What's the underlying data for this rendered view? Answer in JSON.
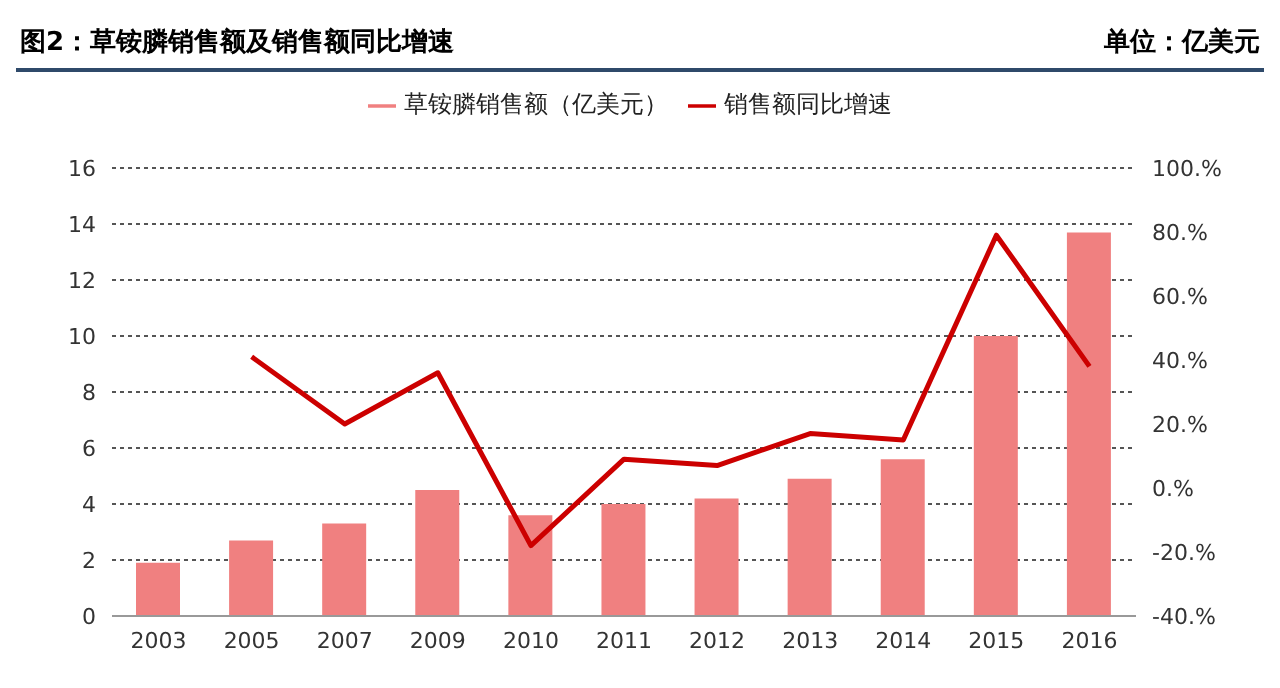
{
  "chart_data": {
    "type": "bar",
    "title": "图2：草铵膦销售额及销售额同比增速",
    "subtitle": "单位：亿美元",
    "categories": [
      "2003",
      "2005",
      "2007",
      "2009",
      "2010",
      "2011",
      "2012",
      "2013",
      "2014",
      "2015",
      "2016"
    ],
    "series": [
      {
        "name": "草铵膦销售额（亿美元）",
        "color": "#f08080",
        "values": [
          1.9,
          2.7,
          3.3,
          4.5,
          3.6,
          4.0,
          4.2,
          4.9,
          5.6,
          10.0,
          13.7
        ]
      },
      {
        "name": "销售额同比增速",
        "type": "line",
        "axis": "y2",
        "color": "#cc0000",
        "values": [
          null,
          41,
          20,
          36,
          -18,
          9,
          7,
          17,
          15,
          79,
          38
        ]
      }
    ],
    "ylim": [
      0,
      16
    ],
    "yticks": [
      0,
      2,
      4,
      6,
      8,
      10,
      12,
      14,
      16
    ],
    "y2lim": [
      -40,
      100
    ],
    "y2ticks": [
      {
        "value": -40,
        "label": "-40.%"
      },
      {
        "value": -20,
        "label": "-20.%"
      },
      {
        "value": 0,
        "label": "0.%"
      },
      {
        "value": 20,
        "label": "20.%"
      },
      {
        "value": 40,
        "label": "40.%"
      },
      {
        "value": 60,
        "label": "60.%"
      },
      {
        "value": 80,
        "label": "80.%"
      },
      {
        "value": 100,
        "label": "100.%"
      }
    ],
    "grid": "y",
    "legend": "top",
    "marker": "none",
    "line_style": "solid"
  }
}
